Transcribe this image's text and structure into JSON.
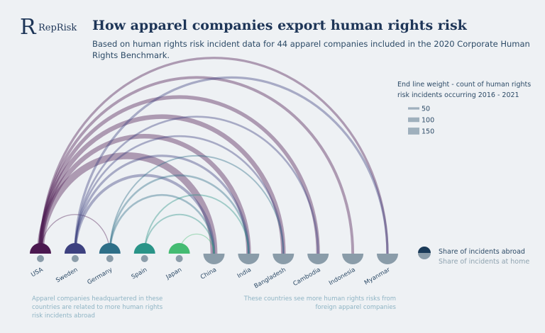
{
  "brand": "RepRisk",
  "chart_data": {
    "type": "arc",
    "title": "How apparel companies export human rights risk",
    "subtitle_lines": [
      "Based on human rights risk incident data for 44 apparel companies included in the 2020 Corporate Human",
      "Rights Benchmark."
    ],
    "weight_legend_title_lines": [
      "End line weight - count of human rights",
      "risk incidents occurring 2016 - 2021"
    ],
    "weight_legend": [
      50,
      100,
      150
    ],
    "share_legend": [
      "Share of incidents abroad",
      "Share of incidents at home"
    ],
    "categories": [
      "USA",
      "Sweden",
      "Germany",
      "Spain",
      "Japan",
      "China",
      "India",
      "Bangladesh",
      "Cambodia",
      "Indonesia",
      "Myanmar"
    ],
    "origins": [
      "USA",
      "Sweden",
      "Germany",
      "Spain",
      "Japan"
    ],
    "origin_colors": [
      "#4b1850",
      "#3d4180",
      "#2e6f88",
      "#2a9488",
      "#44bb72"
    ],
    "abroad_color": "#1a3a58",
    "home_color": "#8a9ca9",
    "links": [
      {
        "source": "USA",
        "target": "China",
        "value": 150
      },
      {
        "source": "USA",
        "target": "India",
        "value": 100
      },
      {
        "source": "USA",
        "target": "Bangladesh",
        "value": 100
      },
      {
        "source": "USA",
        "target": "Cambodia",
        "value": 80
      },
      {
        "source": "USA",
        "target": "Indonesia",
        "value": 60
      },
      {
        "source": "USA",
        "target": "Myanmar",
        "value": 50
      },
      {
        "source": "USA",
        "target": "Germany",
        "value": 20
      },
      {
        "source": "Sweden",
        "target": "China",
        "value": 60
      },
      {
        "source": "Sweden",
        "target": "India",
        "value": 50
      },
      {
        "source": "Sweden",
        "target": "Bangladesh",
        "value": 40
      },
      {
        "source": "Sweden",
        "target": "Cambodia",
        "value": 40
      },
      {
        "source": "Sweden",
        "target": "Myanmar",
        "value": 50
      },
      {
        "source": "Germany",
        "target": "China",
        "value": 40
      },
      {
        "source": "Germany",
        "target": "India",
        "value": 40
      },
      {
        "source": "Germany",
        "target": "Bangladesh",
        "value": 30
      },
      {
        "source": "Spain",
        "target": "China",
        "value": 30
      },
      {
        "source": "Spain",
        "target": "India",
        "value": 30
      },
      {
        "source": "Japan",
        "target": "China",
        "value": 20
      }
    ],
    "annotations": [
      [
        "Apparel companies headquartered in these",
        "countries are related to more human rights",
        "risk incidents abroad"
      ],
      [
        "These countries see more human rights risks from",
        "foreign apparel companies"
      ]
    ]
  }
}
